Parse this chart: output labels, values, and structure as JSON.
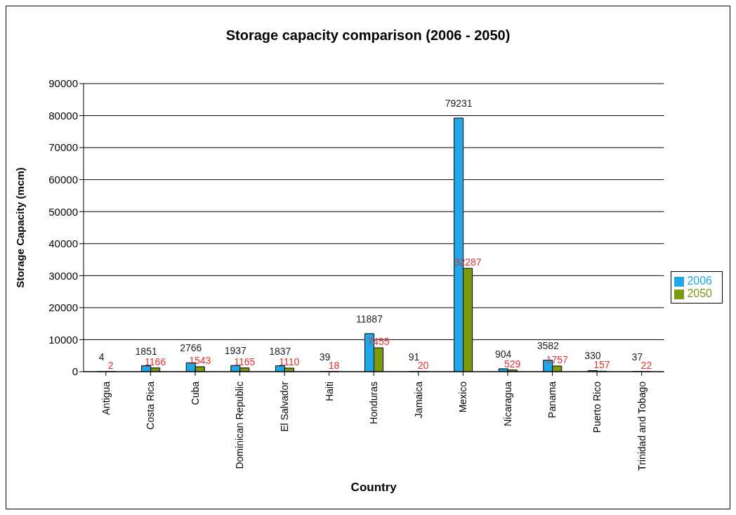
{
  "chart_data": {
    "type": "bar",
    "title": "Storage capacity comparison (2006 - 2050)",
    "xlabel": "Country",
    "ylabel": "Storage Capacity (mcm)",
    "categories": [
      "Antigua",
      "Costa Rica",
      "Cuba",
      "Dominican Republic",
      "El Salvador",
      "Haiti",
      "Honduras",
      "Jamaica",
      "Mexico",
      "Nicaragua",
      "Panama",
      "Puerto Rico",
      "Trinidad and Tobago"
    ],
    "series": [
      {
        "name": "2006",
        "color": "#1ea8e8",
        "values": [
          4,
          1851,
          2766,
          1937,
          1837,
          39,
          11887,
          91,
          79231,
          904,
          3582,
          330,
          37
        ]
      },
      {
        "name": "2050",
        "color": "#7a9a10",
        "values": [
          2,
          1166,
          1543,
          1165,
          1110,
          18,
          7455,
          20,
          32287,
          529,
          1757,
          157,
          22
        ]
      }
    ],
    "ylim": [
      0,
      90000
    ],
    "yticks": [
      0,
      10000,
      20000,
      30000,
      40000,
      50000,
      60000,
      70000,
      80000,
      90000
    ],
    "grid": "y",
    "legend": "right",
    "data_labels": true
  }
}
